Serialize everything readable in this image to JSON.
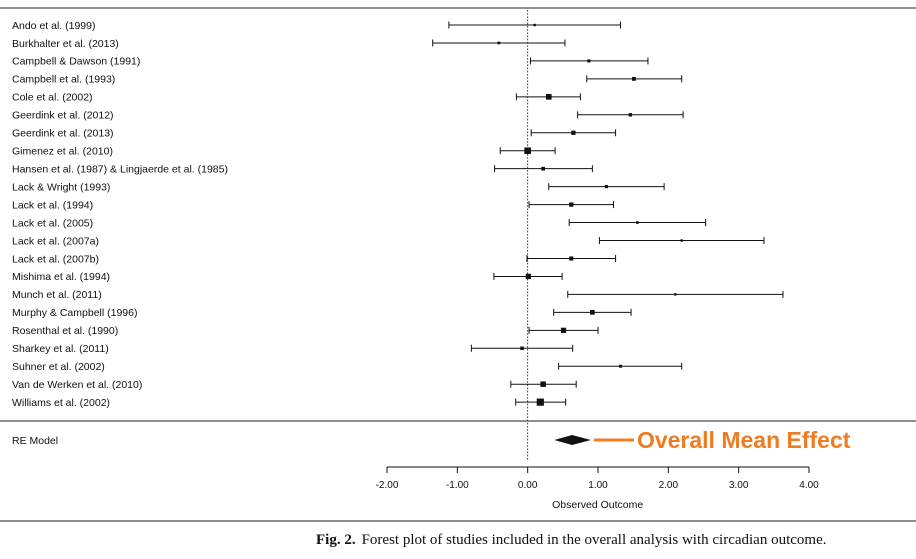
{
  "chart_data": {
    "type": "forest",
    "xlabel": "Observed Outcome",
    "xlim": [
      -2.0,
      4.0
    ],
    "ticks": [
      -2.0,
      -1.0,
      0.0,
      1.0,
      2.0,
      3.0,
      4.0
    ],
    "tick_labels": [
      "-2.00",
      "-1.00",
      "0.00",
      "1.00",
      "2.00",
      "3.00",
      "4.00"
    ],
    "reference_line": 0.0,
    "studies": [
      {
        "label": "Ando et al. (1999)",
        "est": 0.1,
        "lo": -1.12,
        "hi": 1.32
      },
      {
        "label": "Burkhalter et al. (2013)",
        "est": -0.41,
        "lo": -1.35,
        "hi": 0.53
      },
      {
        "label": "Campbell & Dawson (1991)",
        "est": 0.87,
        "lo": 0.04,
        "hi": 1.71
      },
      {
        "label": "Campbell et al. (1993)",
        "est": 1.51,
        "lo": 0.84,
        "hi": 2.19
      },
      {
        "label": "Cole et al. (2002)",
        "est": 0.3,
        "lo": -0.16,
        "hi": 0.75
      },
      {
        "label": "Geerdink et al. (2012)",
        "est": 1.46,
        "lo": 0.71,
        "hi": 2.21
      },
      {
        "label": "Geerdink et al. (2013)",
        "est": 0.65,
        "lo": 0.05,
        "hi": 1.25
      },
      {
        "label": "Gimenez et al. (2010)",
        "est": 0.0,
        "lo": -0.39,
        "hi": 0.39
      },
      {
        "label": "Hansen et al. (1987) & Lingjaerde et al. (1985)",
        "est": 0.22,
        "lo": -0.47,
        "hi": 0.92
      },
      {
        "label": "Lack & Wright (1993)",
        "est": 1.12,
        "lo": 0.3,
        "hi": 1.94
      },
      {
        "label": "Lack et al. (1994)",
        "est": 0.62,
        "lo": 0.02,
        "hi": 1.22
      },
      {
        "label": "Lack et al. (2005)",
        "est": 1.56,
        "lo": 0.59,
        "hi": 2.53
      },
      {
        "label": "Lack et al. (2007a)",
        "est": 2.19,
        "lo": 1.02,
        "hi": 3.36
      },
      {
        "label": "Lack et al. (2007b)",
        "est": 0.62,
        "lo": -0.01,
        "hi": 1.25
      },
      {
        "label": "Mishima et al. (1994)",
        "est": 0.01,
        "lo": -0.48,
        "hi": 0.49
      },
      {
        "label": "Munch et al. (2011)",
        "est": 2.1,
        "lo": 0.57,
        "hi": 3.63
      },
      {
        "label": "Murphy & Campbell (1996)",
        "est": 0.92,
        "lo": 0.37,
        "hi": 1.47
      },
      {
        "label": "Rosenthal et al. (1990)",
        "est": 0.51,
        "lo": 0.02,
        "hi": 1.0
      },
      {
        "label": "Sharkey et al. (2011)",
        "est": -0.08,
        "lo": -0.8,
        "hi": 0.64
      },
      {
        "label": "Suhner et al. (2002)",
        "est": 1.32,
        "lo": 0.44,
        "hi": 2.19
      },
      {
        "label": "Van de Werken et al. (2010)",
        "est": 0.22,
        "lo": -0.24,
        "hi": 0.69
      },
      {
        "label": "Williams et al. (2002)",
        "est": 0.18,
        "lo": -0.17,
        "hi": 0.54
      }
    ],
    "summary": {
      "label": "RE Model",
      "est": 0.63,
      "lo": 0.38,
      "hi": 0.9
    },
    "annotation": {
      "text": "Overall Mean Effect",
      "color": "#ee7c22"
    }
  },
  "caption": {
    "label": "Fig. 2.",
    "text": "Forest plot of studies included in the overall analysis with circadian outcome."
  }
}
